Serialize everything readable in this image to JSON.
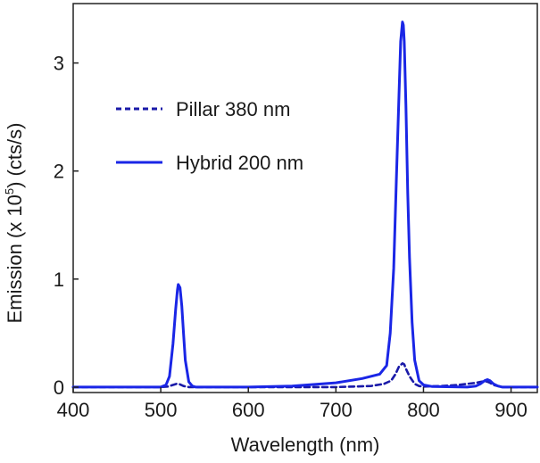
{
  "chart_data": {
    "type": "line",
    "title": "",
    "xlabel": "Wavelength (nm)",
    "ylabel": {
      "prefix": "Emission (x 10",
      "superscript": "5",
      "suffix": ") (cts/s)"
    },
    "xlim": [
      400,
      930
    ],
    "ylim": [
      -0.05,
      3.55
    ],
    "xticks": [
      400,
      500,
      600,
      700,
      800,
      900
    ],
    "yticks": [
      0,
      1,
      2,
      3
    ],
    "grid": false,
    "legend_position": "upper-left",
    "series": [
      {
        "name": "Pillar 380 nm",
        "style": "dashed",
        "color": "#1a1aa8",
        "x": [
          400,
          500,
          508,
          514,
          518,
          522,
          526,
          532,
          540,
          600,
          700,
          740,
          755,
          763,
          768,
          772,
          776,
          778,
          780,
          784,
          790,
          795,
          800,
          820,
          840,
          850,
          860,
          866,
          870,
          873,
          876,
          880,
          885,
          890,
          930
        ],
        "y": [
          0.0,
          0.0,
          0.005,
          0.02,
          0.03,
          0.025,
          0.01,
          0.0,
          0.0,
          0.0,
          0.0,
          0.01,
          0.03,
          0.06,
          0.12,
          0.19,
          0.22,
          0.21,
          0.17,
          0.1,
          0.03,
          0.01,
          0.005,
          0.01,
          0.02,
          0.03,
          0.04,
          0.05,
          0.055,
          0.05,
          0.04,
          0.02,
          0.01,
          0.0,
          0.0
        ]
      },
      {
        "name": "Hybrid 200 nm",
        "style": "solid",
        "color": "#1a26e6",
        "x": [
          400,
          500,
          506,
          510,
          514,
          517,
          519,
          520,
          522,
          524,
          526,
          528,
          532,
          536,
          540,
          550,
          600,
          650,
          700,
          730,
          750,
          758,
          762,
          766,
          769,
          772,
          774,
          776,
          777,
          778,
          780,
          782,
          784,
          787,
          790,
          795,
          800,
          810,
          850,
          860,
          865,
          870,
          873,
          876,
          880,
          885,
          890,
          930
        ],
        "y": [
          0.0,
          0.0,
          0.02,
          0.1,
          0.4,
          0.72,
          0.9,
          0.95,
          0.92,
          0.75,
          0.5,
          0.25,
          0.05,
          0.01,
          0.0,
          0.0,
          0.0,
          0.01,
          0.04,
          0.08,
          0.12,
          0.2,
          0.5,
          1.1,
          1.9,
          2.7,
          3.2,
          3.38,
          3.35,
          3.2,
          2.6,
          1.8,
          1.2,
          0.6,
          0.25,
          0.06,
          0.02,
          0.005,
          0.0,
          0.01,
          0.03,
          0.06,
          0.07,
          0.06,
          0.03,
          0.01,
          0.0,
          0.0
        ]
      }
    ]
  }
}
